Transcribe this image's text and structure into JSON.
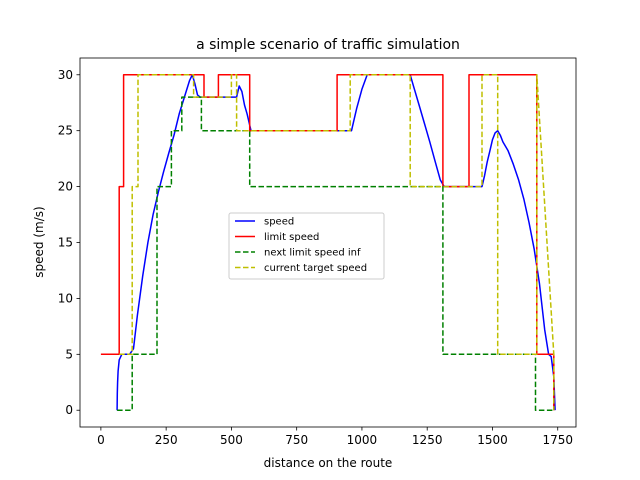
{
  "chart_data": {
    "type": "line",
    "title": "a simple scenario of traffic simulation",
    "xlabel": "distance on the route",
    "ylabel": "speed (m/s)",
    "xlim": [
      -80,
      1820
    ],
    "ylim": [
      -1.5,
      31.5
    ],
    "xticks": [
      0,
      250,
      500,
      750,
      1000,
      1250,
      1500,
      1750
    ],
    "yticks": [
      0,
      5,
      10,
      15,
      20,
      25,
      30
    ],
    "grid": false,
    "legend_location": "center",
    "series": [
      {
        "name": "speed",
        "color": "#0000ff",
        "style": "solid",
        "x": [
          62,
          63,
          64,
          66,
          70,
          80,
          95,
          110,
          125,
          140,
          160,
          180,
          200,
          220,
          240,
          260,
          280,
          300,
          320,
          340,
          350,
          360,
          370,
          380,
          390,
          400,
          450,
          500,
          520,
          530,
          540,
          550,
          560,
          575,
          700,
          800,
          900,
          960,
          980,
          1000,
          1020,
          1040,
          1050,
          1060,
          1185,
          1200,
          1220,
          1240,
          1260,
          1280,
          1300,
          1315,
          1460,
          1470,
          1480,
          1490,
          1500,
          1510,
          1520,
          1530,
          1540,
          1560,
          1580,
          1600,
          1620,
          1640,
          1660,
          1680,
          1700,
          1715,
          1725,
          1735,
          1740
        ],
        "y": [
          0,
          1.5,
          2.5,
          3.5,
          4.5,
          5,
          5,
          5,
          5.5,
          8.5,
          12,
          15,
          17.5,
          19.5,
          21.3,
          23,
          24.6,
          26.5,
          28,
          29.5,
          30,
          29.2,
          28.2,
          28,
          28,
          28,
          28,
          28,
          28,
          29,
          28.5,
          27.3,
          26.5,
          25,
          25,
          25,
          25,
          25,
          27,
          28.7,
          30,
          30,
          30,
          30,
          30,
          28.8,
          27.2,
          25.6,
          24,
          22.3,
          20.6,
          20,
          20,
          21,
          22.2,
          23.2,
          24.2,
          24.8,
          25,
          24.6,
          24,
          23.2,
          22,
          20.6,
          18.9,
          16.8,
          14.4,
          11.3,
          7.2,
          5,
          4.8,
          3,
          0
        ]
      },
      {
        "name": "limit speed",
        "color": "#ff0000",
        "style": "solid",
        "x": [
          0,
          70,
          70,
          87,
          87,
          395,
          395,
          450,
          450,
          570,
          570,
          905,
          905,
          1310,
          1310,
          1410,
          1410,
          1670,
          1670,
          1735,
          1735
        ],
        "y": [
          5,
          5,
          20,
          20,
          30,
          30,
          28,
          28,
          30,
          30,
          25,
          25,
          30,
          30,
          20,
          20,
          30,
          30,
          5,
          5,
          0
        ]
      },
      {
        "name": "next limit speed inf",
        "color": "#008000",
        "style": "dashed",
        "x": [
          62,
          120,
          120,
          215,
          215,
          270,
          270,
          310,
          310,
          385,
          385,
          570,
          570,
          1310,
          1310,
          1665,
          1665,
          1735
        ],
        "y": [
          0,
          0,
          5,
          5,
          20,
          20,
          25,
          25,
          28,
          28,
          25,
          25,
          20,
          20,
          5,
          5,
          0,
          0
        ]
      },
      {
        "name": "current target speed",
        "color": "#bfbf00",
        "style": "dashed",
        "x": [
          70,
          120,
          120,
          142,
          142,
          355,
          355,
          375,
          375,
          500,
          500,
          520,
          520,
          570,
          570,
          955,
          955,
          1185,
          1185,
          1460,
          1460,
          1520,
          1520,
          1670,
          1670,
          1735,
          1735
        ],
        "y": [
          5,
          5,
          20,
          20,
          30,
          30,
          28,
          28,
          28,
          28,
          30,
          30,
          25,
          25,
          25,
          25,
          30,
          30,
          20,
          20,
          30,
          30,
          5,
          5,
          30,
          5,
          0
        ]
      }
    ]
  }
}
